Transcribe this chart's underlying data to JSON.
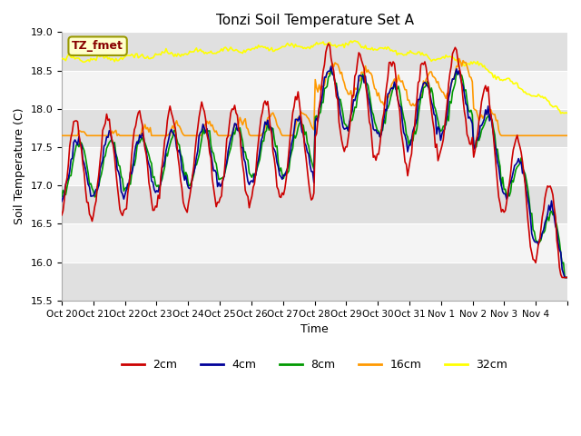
{
  "title": "Tonzi Soil Temperature Set A",
  "xlabel": "Time",
  "ylabel": "Soil Temperature (C)",
  "ylim": [
    15.5,
    19.0
  ],
  "yticks": [
    15.5,
    16.0,
    16.5,
    17.0,
    17.5,
    18.0,
    18.5,
    19.0
  ],
  "xtick_labels": [
    "Oct 20",
    "Oct 21",
    "Oct 22",
    "Oct 23",
    "Oct 24",
    "Oct 25",
    "Oct 26",
    "Oct 27",
    "Oct 28",
    "Oct 29",
    "Oct 30",
    "Oct 31",
    "Nov 1",
    "Nov 2",
    "Nov 3",
    "Nov 4"
  ],
  "n_days": 16,
  "colors": {
    "2cm": "#cc0000",
    "4cm": "#000099",
    "8cm": "#009900",
    "16cm": "#ff9900",
    "32cm": "#ffff00"
  },
  "legend_label": "TZ_fmet",
  "legend_bg": "#ffffcc",
  "legend_border": "#999900",
  "bg_stripe_dark": "#e0e0e0",
  "bg_stripe_light": "#f4f4f4"
}
